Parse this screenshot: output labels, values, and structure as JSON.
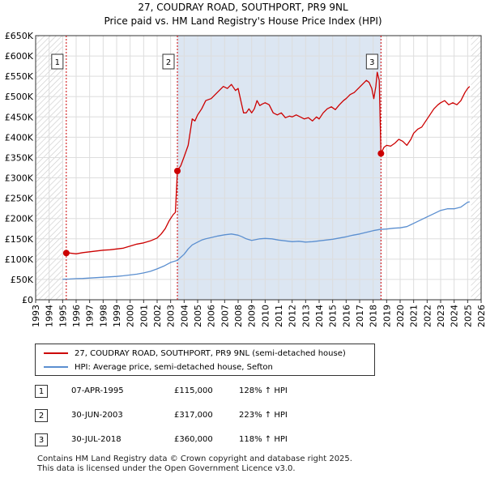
{
  "header": {
    "title_line1": "27, COUDRAY ROAD, SOUTHPORT, PR9 9NL",
    "title_line2": "Price paid vs. HM Land Registry's House Price Index (HPI)"
  },
  "chart_data": {
    "type": "line",
    "x_ticks": [
      "1993",
      "1994",
      "1995",
      "1996",
      "1997",
      "1998",
      "1999",
      "2000",
      "2001",
      "2002",
      "2003",
      "2004",
      "2005",
      "2006",
      "2007",
      "2008",
      "2009",
      "2010",
      "2011",
      "2012",
      "2013",
      "2014",
      "2015",
      "2016",
      "2017",
      "2018",
      "2019",
      "2020",
      "2021",
      "2022",
      "2023",
      "2024",
      "2025",
      "2026"
    ],
    "y_ticks": [
      "£0",
      "£50K",
      "£100K",
      "£150K",
      "£200K",
      "£250K",
      "£300K",
      "£350K",
      "£400K",
      "£450K",
      "£500K",
      "£550K",
      "£600K",
      "£650K"
    ],
    "xlim": [
      1993,
      2026
    ],
    "ylim": [
      0,
      650000
    ],
    "data_range": [
      1995.0,
      2025.25
    ],
    "grid": true,
    "colors": {
      "property": "#cc0000",
      "hpi": "#5b8fd0",
      "shade": "#dce6f2",
      "marker_line": "#cc0000"
    },
    "series": [
      {
        "name": "27, COUDRAY ROAD, SOUTHPORT, PR9 9NL (semi-detached house)",
        "color": "#cc0000",
        "x": [
          1995.27,
          1995.5,
          1996,
          1996.5,
          1997,
          1997.5,
          1998,
          1998.5,
          1999,
          1999.5,
          2000,
          2000.5,
          2001,
          2001.5,
          2002,
          2002.3,
          2002.6,
          2002.9,
          2003.2,
          2003.35,
          2003.5,
          2003.75,
          2004,
          2004.3,
          2004.6,
          2004.8,
          2005,
          2005.3,
          2005.6,
          2006,
          2006.3,
          2006.6,
          2006.9,
          2007.2,
          2007.5,
          2007.8,
          2008,
          2008.2,
          2008.4,
          2008.6,
          2008.8,
          2009,
          2009.2,
          2009.4,
          2009.6,
          2009.8,
          2010,
          2010.3,
          2010.6,
          2010.9,
          2011.2,
          2011.5,
          2011.8,
          2012,
          2012.3,
          2012.6,
          2012.9,
          2013.2,
          2013.5,
          2013.8,
          2014,
          2014.3,
          2014.6,
          2014.9,
          2015.2,
          2015.5,
          2015.8,
          2016,
          2016.3,
          2016.6,
          2016.9,
          2017.2,
          2017.5,
          2017.7,
          2017.9,
          2018.05,
          2018.2,
          2018.3,
          2018.45,
          2018.58,
          2018.8,
          2019,
          2019.3,
          2019.6,
          2019.9,
          2020.2,
          2020.5,
          2020.8,
          2021,
          2021.3,
          2021.6,
          2021.9,
          2022.2,
          2022.5,
          2022.8,
          2023,
          2023.3,
          2023.6,
          2023.9,
          2024.2,
          2024.5,
          2024.8,
          2025,
          2025.15
        ],
        "values": [
          115000,
          115000,
          113000,
          116000,
          118000,
          120000,
          122000,
          123000,
          125000,
          127000,
          132000,
          137000,
          140000,
          145000,
          152000,
          162000,
          175000,
          195000,
          210000,
          215000,
          317000,
          330000,
          352000,
          380000,
          445000,
          440000,
          455000,
          470000,
          490000,
          495000,
          505000,
          515000,
          525000,
          520000,
          530000,
          515000,
          520000,
          490000,
          460000,
          460000,
          470000,
          460000,
          470000,
          490000,
          478000,
          482000,
          485000,
          480000,
          460000,
          455000,
          460000,
          448000,
          452000,
          450000,
          455000,
          450000,
          445000,
          448000,
          440000,
          450000,
          445000,
          460000,
          470000,
          475000,
          468000,
          480000,
          490000,
          495000,
          505000,
          510000,
          520000,
          530000,
          540000,
          535000,
          520000,
          495000,
          525000,
          560000,
          540000,
          360000,
          375000,
          380000,
          378000,
          385000,
          395000,
          390000,
          380000,
          395000,
          410000,
          420000,
          425000,
          440000,
          455000,
          470000,
          480000,
          485000,
          490000,
          480000,
          485000,
          480000,
          490000,
          510000,
          520000,
          525000
        ]
      },
      {
        "name": "HPI: Average price, semi-detached house, Sefton",
        "color": "#5b8fd0",
        "x": [
          1995,
          1995.5,
          1996,
          1996.5,
          1997,
          1997.5,
          1998,
          1998.5,
          1999,
          1999.5,
          2000,
          2000.5,
          2001,
          2001.5,
          2002,
          2002.5,
          2003,
          2003.5,
          2004,
          2004.3,
          2004.6,
          2005,
          2005.3,
          2005.6,
          2006,
          2006.5,
          2007,
          2007.5,
          2008,
          2008.3,
          2008.6,
          2009,
          2009.3,
          2009.6,
          2010,
          2010.5,
          2011,
          2011.5,
          2012,
          2012.5,
          2013,
          2013.5,
          2014,
          2014.5,
          2015,
          2015.5,
          2016,
          2016.5,
          2017,
          2017.5,
          2018,
          2018.5,
          2019,
          2019.5,
          2020,
          2020.5,
          2021,
          2021.5,
          2022,
          2022.5,
          2023,
          2023.5,
          2024,
          2024.5,
          2025,
          2025.15
        ],
        "values": [
          50500,
          51000,
          52000,
          52500,
          53500,
          54500,
          55500,
          56500,
          57500,
          59000,
          61000,
          63000,
          66000,
          70000,
          76000,
          83000,
          92000,
          97000,
          112000,
          125000,
          135000,
          142000,
          147000,
          150000,
          153000,
          157000,
          160000,
          162000,
          159000,
          155000,
          150000,
          146000,
          148000,
          150000,
          151000,
          150000,
          147000,
          145000,
          143000,
          144000,
          142000,
          143000,
          145000,
          147000,
          149000,
          152000,
          155000,
          159000,
          162000,
          166000,
          170000,
          173000,
          174000,
          176000,
          177000,
          180000,
          188000,
          196000,
          204000,
          212000,
          220000,
          224000,
          224000,
          228000,
          240000,
          241000
        ]
      }
    ],
    "sales": [
      {
        "label": "1",
        "x": 1995.27,
        "value": 115000,
        "date": "07-APR-1995",
        "price": "£115,000",
        "hpi_change": "128% ↑ HPI"
      },
      {
        "label": "2",
        "x": 2003.5,
        "value": 317000,
        "date": "30-JUN-2003",
        "price": "£317,000",
        "hpi_change": "223% ↑ HPI"
      },
      {
        "label": "3",
        "x": 2018.58,
        "value": 360000,
        "date": "30-JUL-2018",
        "price": "£360,000",
        "hpi_change": "118% ↑ HPI"
      }
    ]
  },
  "legend": {
    "property_label": "27, COUDRAY ROAD, SOUTHPORT, PR9 9NL (semi-detached house)",
    "hpi_label": "HPI: Average price, semi-detached house, Sefton"
  },
  "footer": {
    "line1": "Contains HM Land Registry data © Crown copyright and database right 2025.",
    "line2": "This data is licensed under the Open Government Licence v3.0."
  }
}
